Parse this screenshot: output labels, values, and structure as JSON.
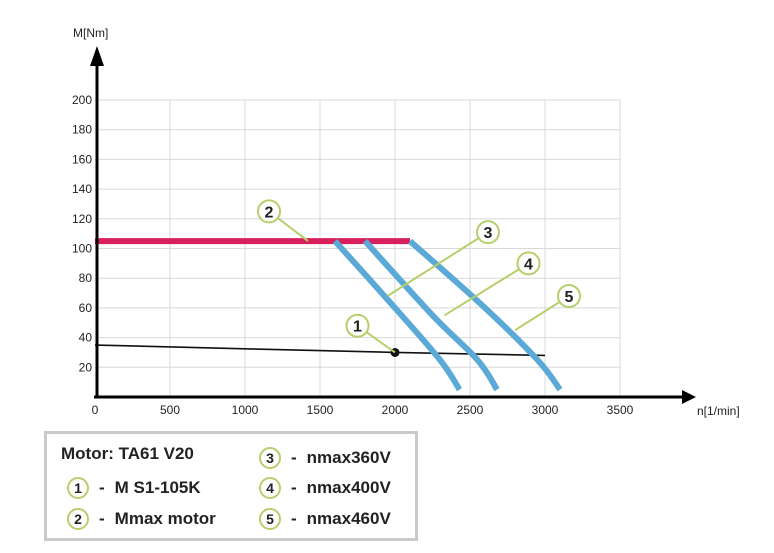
{
  "chart_data": {
    "type": "line",
    "xlabel": "n[1/min]",
    "ylabel": "M[Nm]",
    "xlim": [
      0,
      3500
    ],
    "ylim": [
      0,
      200
    ],
    "x_ticks": [
      0,
      500,
      1000,
      1500,
      2000,
      2500,
      3000,
      3500
    ],
    "y_ticks": [
      20,
      40,
      60,
      80,
      100,
      120,
      140,
      160,
      180,
      200
    ],
    "grid": true,
    "series": [
      {
        "name": "M S1-105K",
        "id": 1,
        "color": "#111111",
        "points": [
          [
            0,
            35
          ],
          [
            2000,
            30
          ],
          [
            3000,
            28
          ]
        ]
      },
      {
        "name": "Mmax motor",
        "id": 2,
        "color": "#d61f5b",
        "points": [
          [
            0,
            105
          ],
          [
            2100,
            105
          ]
        ]
      },
      {
        "name": "nmax360V",
        "id": 3,
        "color": "#5ba9d6",
        "points": [
          [
            1600,
            105
          ],
          [
            2000,
            60
          ],
          [
            2300,
            25
          ],
          [
            2430,
            5
          ]
        ]
      },
      {
        "name": "nmax400V",
        "id": 4,
        "color": "#5ba9d6",
        "points": [
          [
            1800,
            105
          ],
          [
            2250,
            55
          ],
          [
            2550,
            25
          ],
          [
            2680,
            5
          ]
        ]
      },
      {
        "name": "nmax460V",
        "id": 5,
        "color": "#5ba9d6",
        "points": [
          [
            2100,
            105
          ],
          [
            2600,
            60
          ],
          [
            2950,
            25
          ],
          [
            3100,
            5
          ]
        ]
      }
    ],
    "marker_point": [
      2000,
      30
    ],
    "callouts": [
      {
        "label": "1",
        "circle_at": [
          1750,
          48
        ],
        "line_to": [
          2000,
          30
        ]
      },
      {
        "label": "2",
        "circle_at": [
          1160,
          125
        ],
        "line_to": [
          1420,
          105
        ]
      },
      {
        "label": "3",
        "circle_at": [
          2620,
          111
        ],
        "line_to": [
          1950,
          68
        ]
      },
      {
        "label": "4",
        "circle_at": [
          2890,
          90
        ],
        "line_to": [
          2330,
          55
        ]
      },
      {
        "label": "5",
        "circle_at": [
          3160,
          68
        ],
        "line_to": [
          2800,
          45
        ]
      }
    ]
  },
  "legend": {
    "title": "Motor: TA61 V20",
    "dash": "-",
    "entries": [
      {
        "num": "1",
        "label": "M S1-105K"
      },
      {
        "num": "2",
        "label": "Mmax motor"
      },
      {
        "num": "3",
        "label": "nmax360V"
      },
      {
        "num": "4",
        "label": "nmax400V"
      },
      {
        "num": "5",
        "label": "nmax460V"
      }
    ]
  }
}
